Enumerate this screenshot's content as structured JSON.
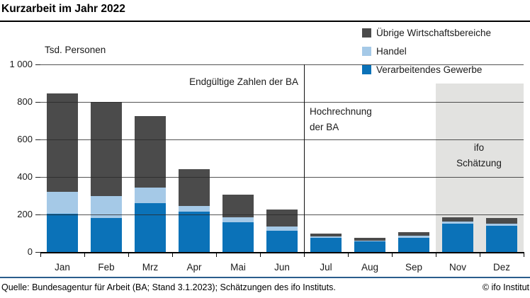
{
  "title": "Kurzarbeit im Jahr 2022",
  "footer": {
    "source": "Quelle: Bundesagentur für Arbeit (BA; Stand 3.1.2023); Schätzungen des ifo Instituts.",
    "copyright": "© ifo Institut"
  },
  "chart_data": {
    "type": "bar",
    "stacked": true,
    "title": "Kurzarbeit im Jahr 2022",
    "unit_label": "Tsd. Personen",
    "categories": [
      "Jan",
      "Feb",
      "Mrz",
      "Apr",
      "Mai",
      "Jun",
      "Jul",
      "Aug",
      "Sep",
      "Nov",
      "Dez"
    ],
    "series": [
      {
        "name": "Verarbeitendes Gewerbe",
        "key": "verarbeitendes-gewerbe",
        "color": "#0b72b8",
        "values": [
          205,
          180,
          260,
          215,
          160,
          115,
          75,
          55,
          75,
          150,
          140
        ]
      },
      {
        "name": "Handel",
        "key": "handel",
        "color": "#a5c9e7",
        "values": [
          115,
          120,
          85,
          30,
          25,
          20,
          8,
          7,
          12,
          12,
          12
        ]
      },
      {
        "name": "Übrige Wirtschaftsbereiche",
        "key": "uebrige-wirtschaftsbereiche",
        "color": "#4b4b4b",
        "values": [
          525,
          500,
          380,
          195,
          120,
          90,
          17,
          13,
          18,
          23,
          28
        ]
      }
    ],
    "totals": [
      845,
      800,
      725,
      440,
      305,
      225,
      100,
      75,
      105,
      185,
      180
    ],
    "stack_order": "bottom-to-top",
    "legend_position": "top-right",
    "legend_order": [
      "Übrige Wirtschaftsbereiche",
      "Handel",
      "Verarbeitendes Gewerbe"
    ],
    "ylim": [
      0,
      1000
    ],
    "yticks": [
      0,
      200,
      400,
      600,
      800,
      1000
    ],
    "ytick_labels": [
      "0",
      "200",
      "400",
      "600",
      "800",
      "1 000"
    ],
    "grid": true,
    "annotations": [
      {
        "text": "Endgültige Zahlen der BA",
        "applies_to": "Jan–Jun"
      },
      {
        "text": "Hochrechnung\nder BA",
        "applies_to": "Jul–Sep"
      },
      {
        "text": "ifo\nSchätzung",
        "applies_to": "Nov–Dez"
      }
    ],
    "divider_after_category": "Jun",
    "highlight_region": {
      "from_category": "Nov",
      "to_category": "Dez",
      "top_value": 900,
      "color": "#e2e2e0"
    }
  }
}
